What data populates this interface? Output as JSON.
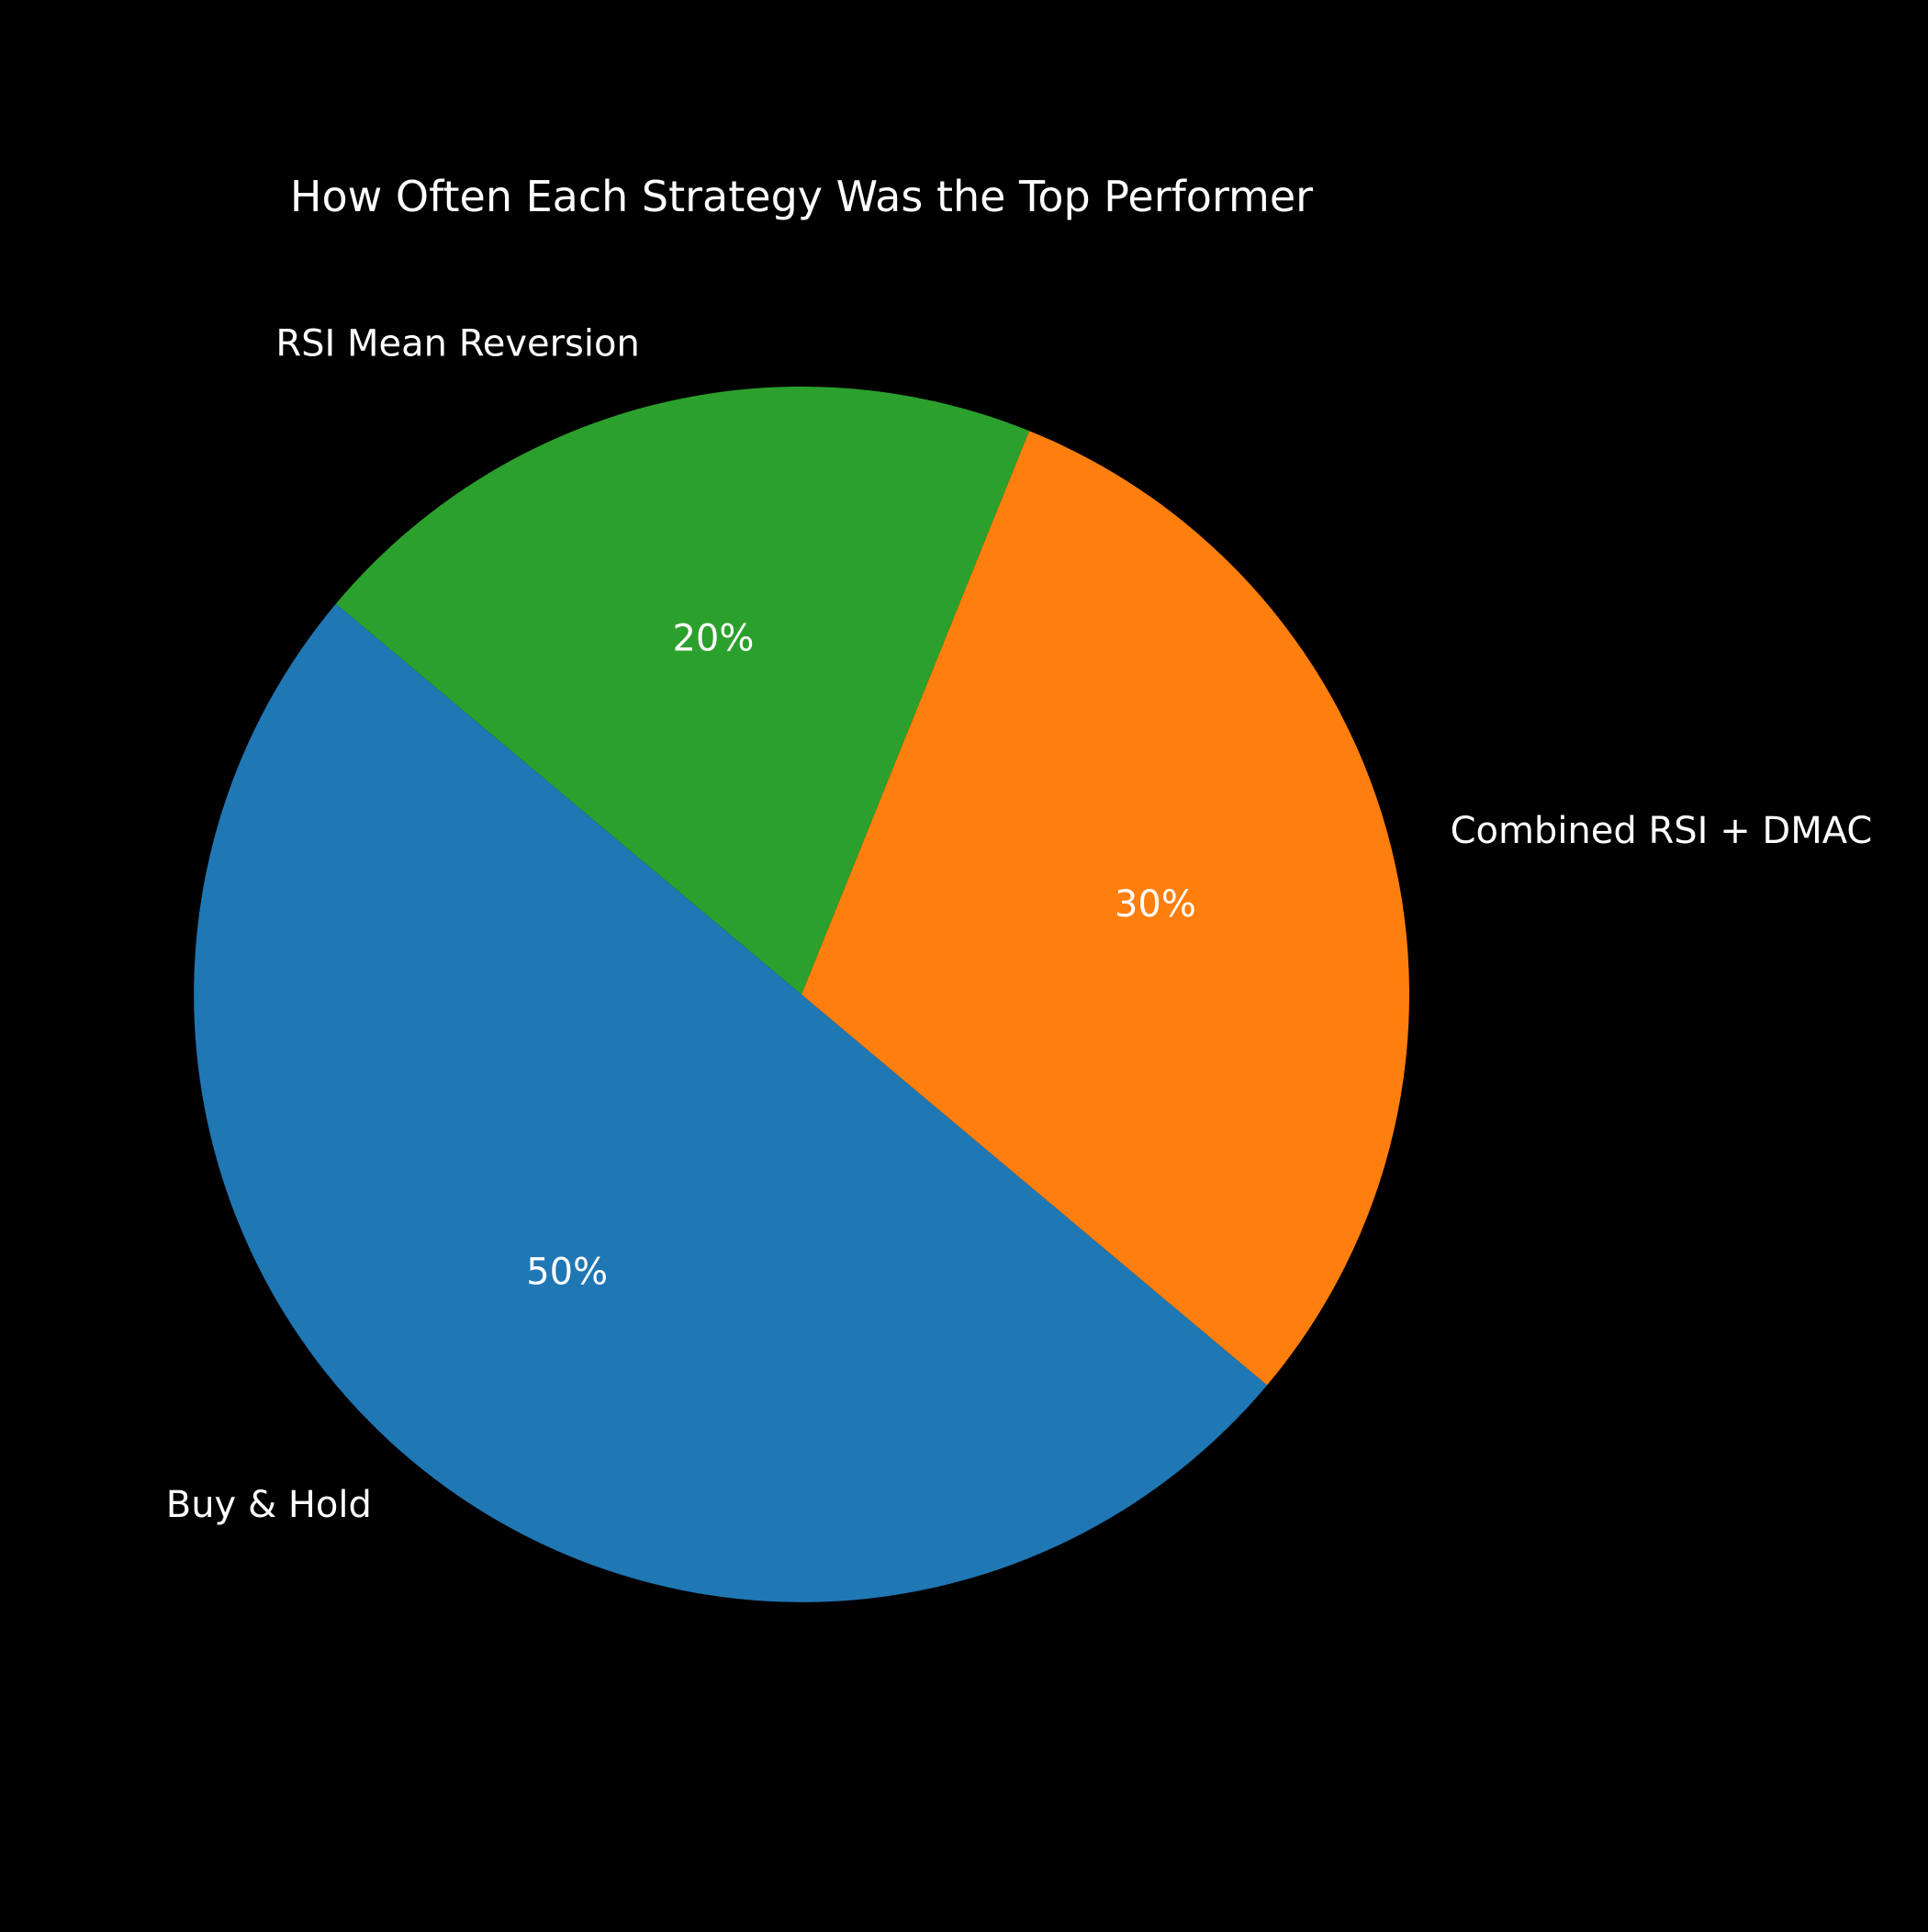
{
  "chart_data": {
    "type": "pie",
    "title": "How Often Each Strategy Was the Top Performer",
    "start_angle_deg": 140,
    "direction": "counterclockwise",
    "slices": [
      {
        "label": "Buy & Hold",
        "value": 50,
        "pct_label": "50%",
        "color": "#1f77b4"
      },
      {
        "label": "Combined RSI + DMAC",
        "value": 30,
        "pct_label": "30%",
        "color": "#ff7f0e"
      },
      {
        "label": "RSI Mean Reversion",
        "value": 20,
        "pct_label": "20%",
        "color": "#2ca02c"
      }
    ],
    "background": "#000000",
    "text_color": "#ffffff",
    "legend": "none",
    "grid": false
  }
}
